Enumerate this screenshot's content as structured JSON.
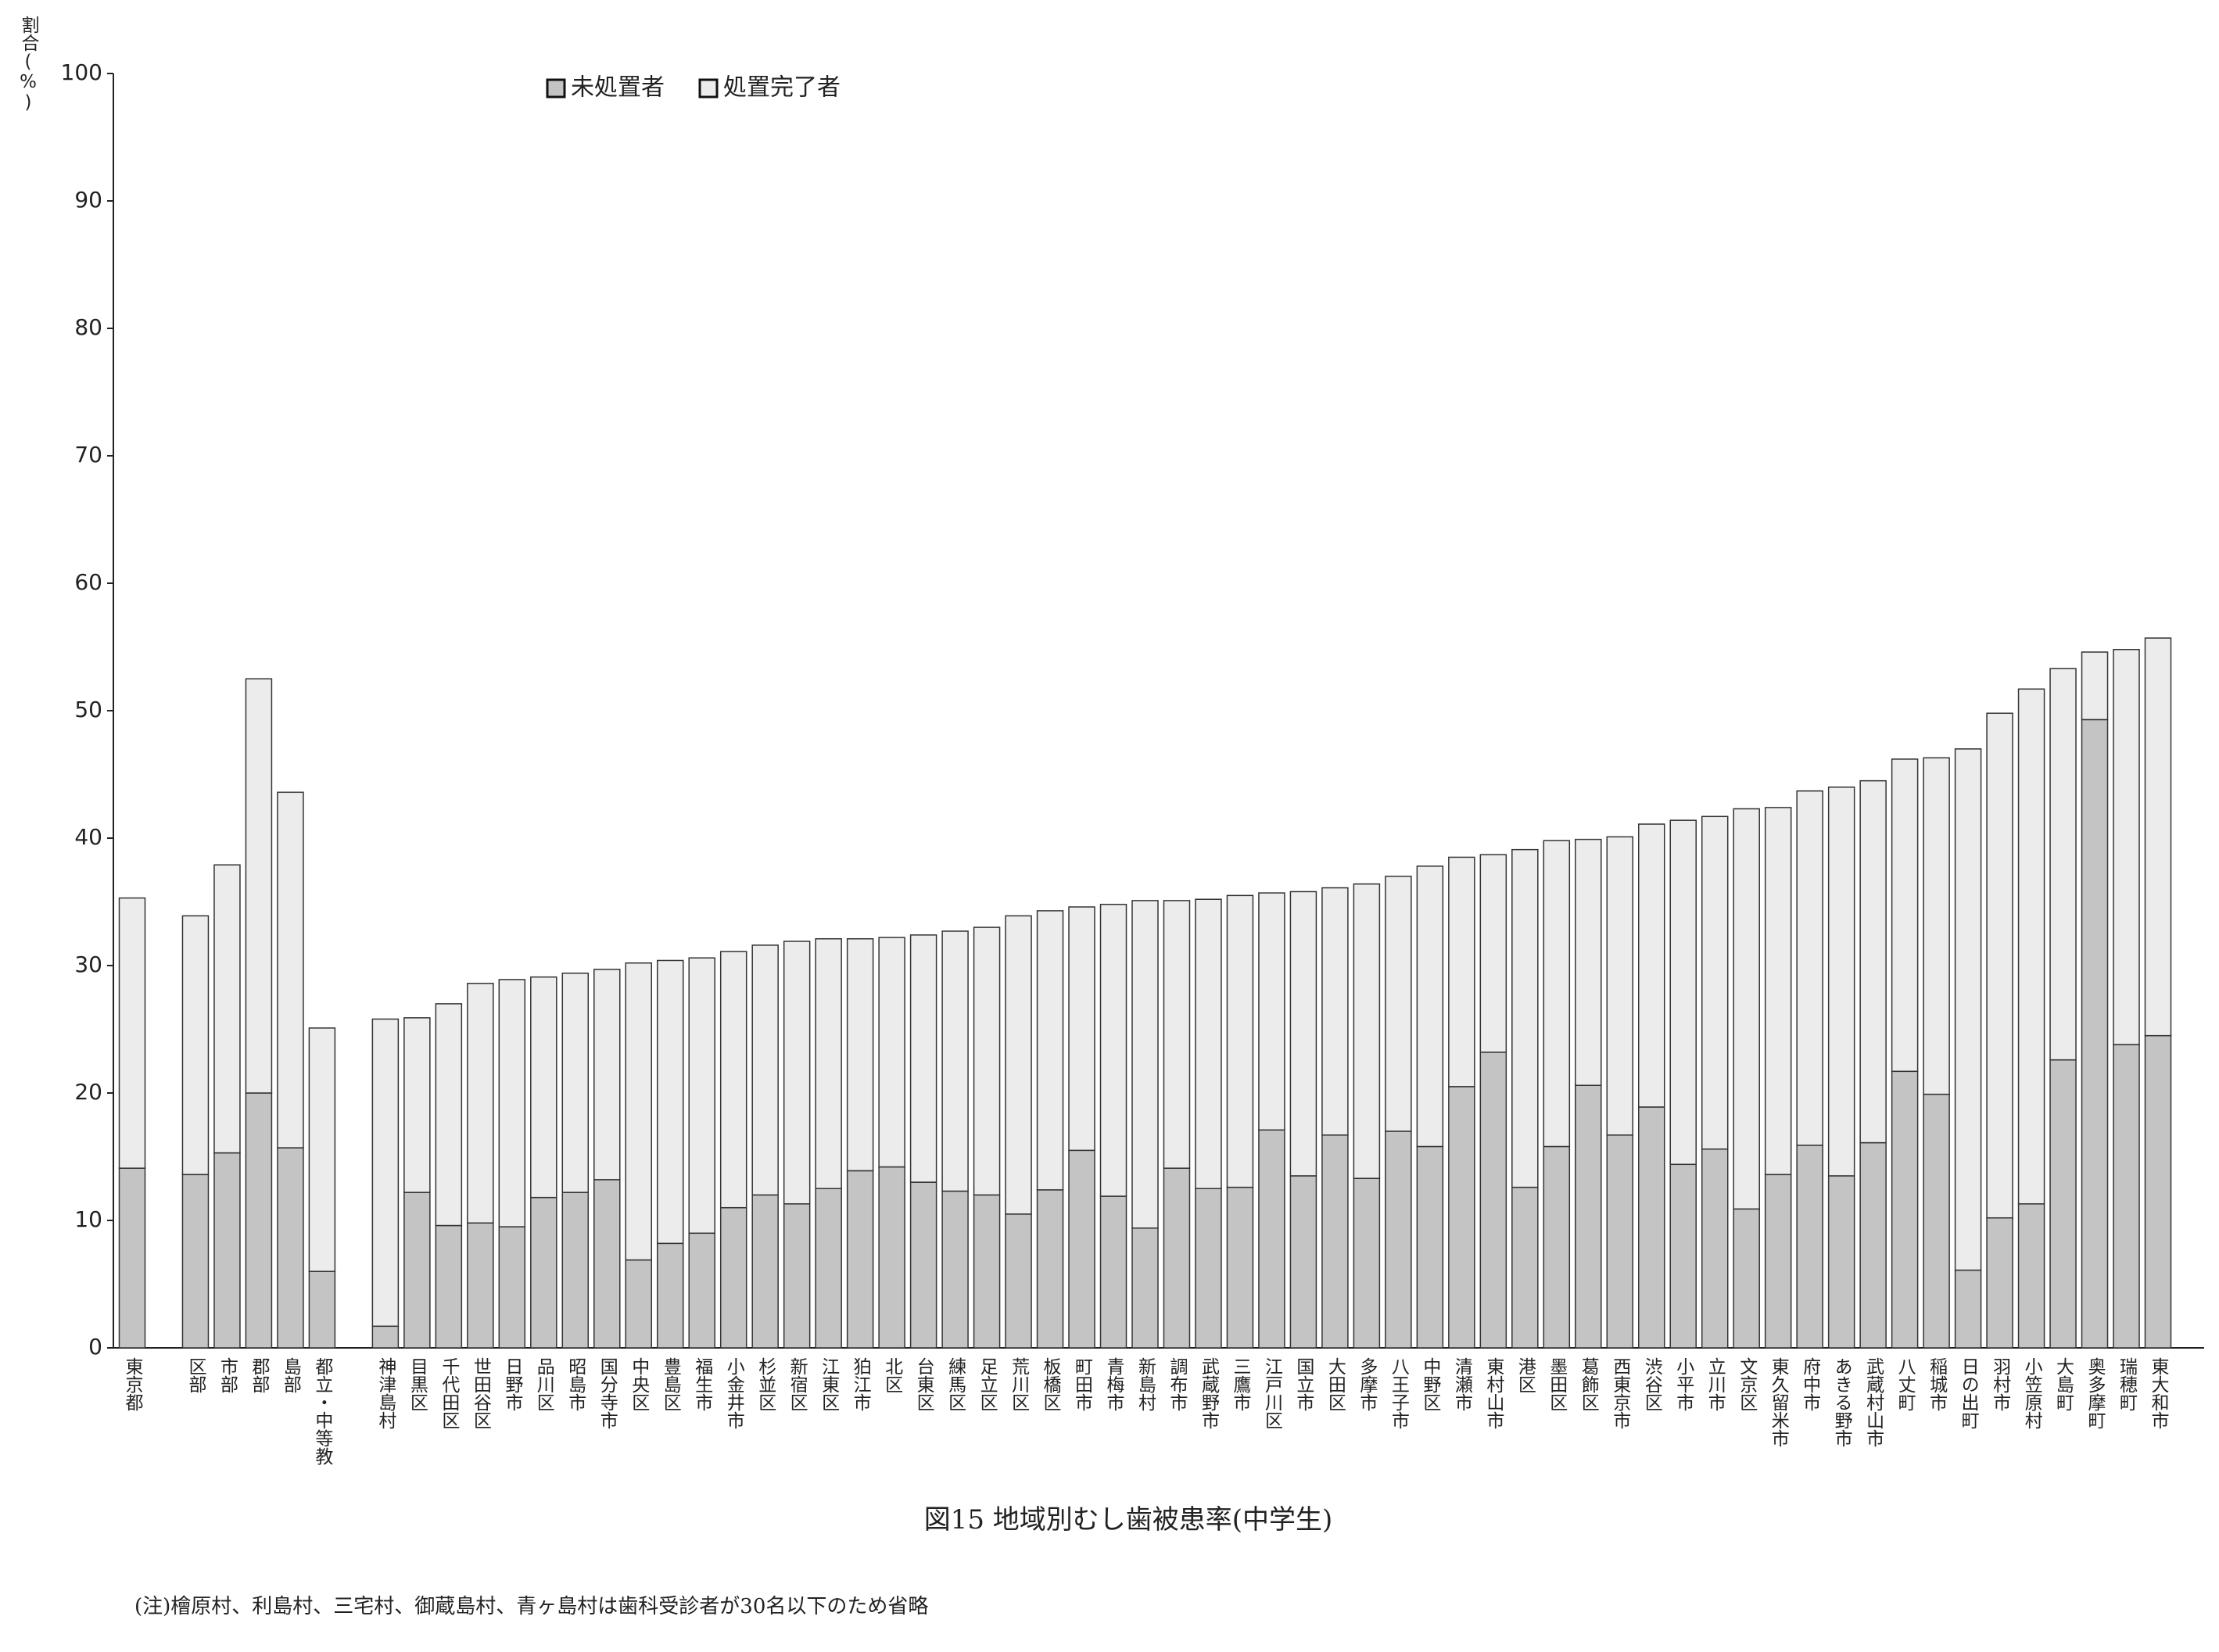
{
  "chart_data": {
    "type": "stacked_bar",
    "title": "図15 地域別むし歯被患率(中学生)",
    "y_label": "割合(%)",
    "note": "(注)檜原村、利島村、三宅村、御蔵島村、青ヶ島村は歯科受診者が30名以下のため省略",
    "legend": "top",
    "categories": [
      "東京都",
      null,
      "区部",
      "市部",
      "郡部",
      "島部",
      "都立・中等教",
      null,
      "神津島村",
      "目黒区",
      "千代田区",
      "世田谷区",
      "日野市",
      "品川区",
      "昭島市",
      "国分寺市",
      "中央区",
      "豊島区",
      "福生市",
      "小金井市",
      "杉並区",
      "新宿区",
      "江東区",
      "狛江市",
      "北区",
      "台東区",
      "練馬区",
      "足立区",
      "荒川区",
      "板橋区",
      "町田市",
      "青梅市",
      "新島村",
      "調布市",
      "武蔵野市",
      "三鷹市",
      "江戸川区",
      "国立市",
      "大田区",
      "多摩市",
      "八王子市",
      "中野区",
      "清瀬市",
      "東村山市",
      "港区",
      "墨田区",
      "葛飾区",
      "西東京市",
      "渋谷区",
      "小平市",
      "立川市",
      "文京区",
      "東久留米市",
      "府中市",
      "あきる野市",
      "武蔵村山市",
      "八丈町",
      "稲城市",
      "日の出町",
      "羽村市",
      "小笠原村",
      "大島町",
      "奥多摩町",
      "瑞穂町",
      "東大和市"
    ],
    "series": [
      {
        "name": "未処置者",
        "color": "#c4c4c4",
        "values": [
          14.1,
          null,
          13.6,
          15.3,
          20.0,
          15.7,
          6.0,
          null,
          1.7,
          12.2,
          9.6,
          9.8,
          9.5,
          11.8,
          12.2,
          13.2,
          6.9,
          8.2,
          9.0,
          11.0,
          12.0,
          11.3,
          12.5,
          13.9,
          14.2,
          13.0,
          12.3,
          12.0,
          10.5,
          12.4,
          15.5,
          11.9,
          9.4,
          14.1,
          12.5,
          12.6,
          17.1,
          13.5,
          16.7,
          13.3,
          17.0,
          15.8,
          20.5,
          23.2,
          12.6,
          15.8,
          20.6,
          16.7,
          18.9,
          14.4,
          15.6,
          10.9,
          13.6,
          15.9,
          13.5,
          16.1,
          21.7,
          19.9,
          6.1,
          10.2,
          11.3,
          22.6,
          49.3,
          23.8,
          24.5
        ]
      },
      {
        "name": "処置完了者",
        "color": "#ececec",
        "values": [
          21.2,
          null,
          20.3,
          22.6,
          32.5,
          27.9,
          19.1,
          null,
          24.1,
          13.7,
          17.4,
          18.8,
          19.4,
          17.3,
          17.2,
          16.5,
          23.3,
          22.2,
          21.6,
          20.1,
          19.6,
          20.6,
          19.6,
          18.2,
          18.0,
          19.4,
          20.4,
          21.0,
          23.4,
          21.9,
          19.1,
          22.9,
          25.7,
          21.0,
          22.7,
          22.9,
          18.6,
          22.3,
          19.4,
          23.1,
          20.0,
          22.0,
          18.0,
          15.5,
          26.5,
          24.0,
          19.3,
          23.4,
          22.2,
          27.0,
          26.1,
          31.4,
          28.8,
          27.8,
          30.5,
          28.4,
          24.5,
          26.4,
          40.9,
          39.6,
          40.4,
          30.7,
          5.3,
          31.0,
          31.2
        ]
      }
    ],
    "ylim": [
      0,
      100
    ],
    "yticks": [
      0,
      10,
      20,
      30,
      40,
      50,
      60,
      70,
      80,
      90,
      100
    ],
    "grid": false
  }
}
